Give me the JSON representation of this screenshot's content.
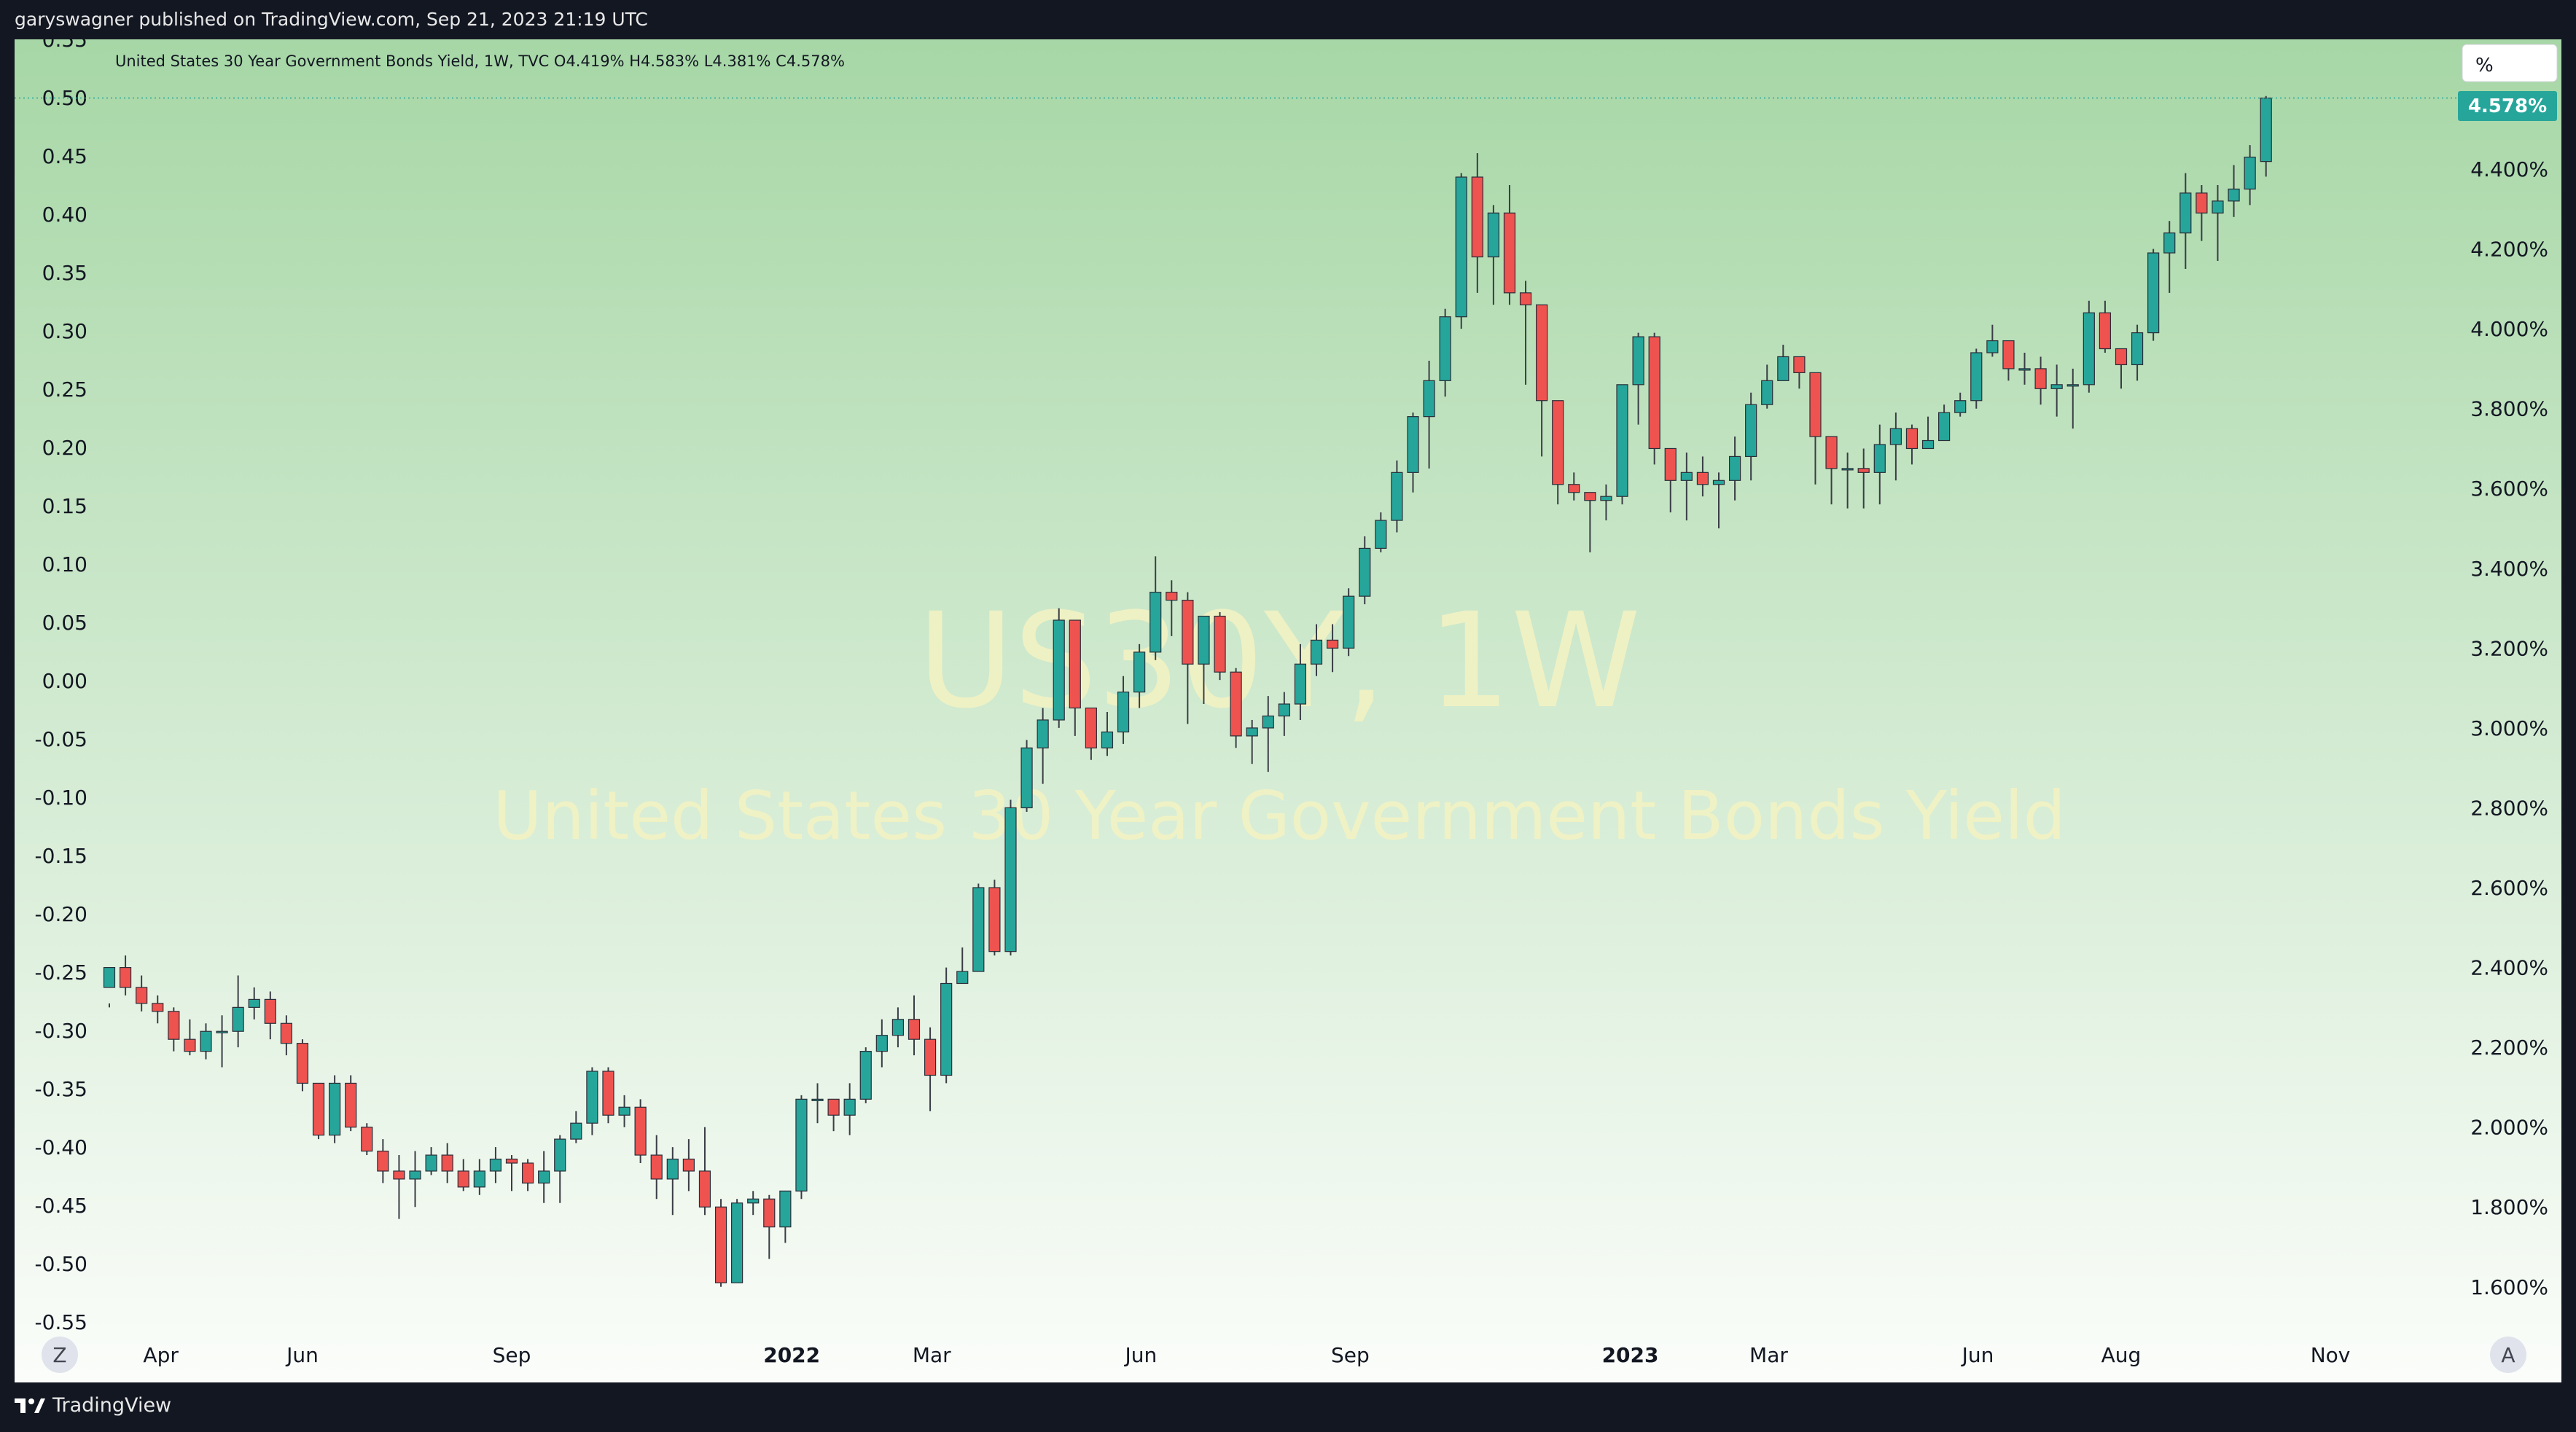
{
  "publisher_line": "garyswagner published on TradingView.com, Sep 21, 2023 21:19 UTC",
  "legend_line": "United States 30 Year Government Bonds Yield, 1W, TVC  O4.419%  H4.583%  L4.381%  C4.578%",
  "watermark": {
    "symbol": "US30Y, 1W",
    "name": "United States 30 Year Government Bonds Yield"
  },
  "scale_button": "%",
  "last_price_label": "4.578%",
  "footer": {
    "brand": "TradingView"
  },
  "buttons": {
    "left": "Z",
    "right": "A"
  },
  "colors": {
    "up": "#26a69a",
    "down": "#ef5350",
    "last_price_bg": "#26a69a"
  },
  "chart_data": {
    "type": "candlestick",
    "title": "United States 30 Year Government Bonds Yield",
    "interval": "1W",
    "grid": false,
    "right_axis": {
      "unit": "%",
      "ylim": [
        1.512,
        4.725
      ],
      "ticks": [
        "4.400%",
        "4.200%",
        "4.000%",
        "3.800%",
        "3.600%",
        "3.400%",
        "3.200%",
        "3.000%",
        "2.800%",
        "2.600%",
        "2.400%",
        "2.200%",
        "2.000%",
        "1.800%",
        "1.600%"
      ]
    },
    "left_axis": {
      "ylim": [
        -0.55,
        0.55
      ],
      "ticks": [
        "0.55",
        "0.50",
        "0.45",
        "0.40",
        "0.35",
        "0.30",
        "0.25",
        "0.20",
        "0.15",
        "0.10",
        "0.05",
        "0.00",
        "-0.05",
        "-0.10",
        "-0.15",
        "-0.20",
        "-0.25",
        "-0.30",
        "-0.35",
        "-0.40",
        "-0.45",
        "-0.50",
        "-0.55"
      ]
    },
    "x_ticks": [
      {
        "label": "Apr",
        "bold": false,
        "week": 3.2
      },
      {
        "label": "Jun",
        "bold": false,
        "week": 12
      },
      {
        "label": "Sep",
        "bold": false,
        "week": 25
      },
      {
        "label": "2022",
        "bold": true,
        "week": 42.4
      },
      {
        "label": "Mar",
        "bold": false,
        "week": 51.1
      },
      {
        "label": "Jun",
        "bold": false,
        "week": 64.1
      },
      {
        "label": "Sep",
        "bold": false,
        "week": 77.1
      },
      {
        "label": "2023",
        "bold": true,
        "week": 94.5
      },
      {
        "label": "Mar",
        "bold": false,
        "week": 103.1
      },
      {
        "label": "Jun",
        "bold": false,
        "week": 116.1
      },
      {
        "label": "Aug",
        "bold": false,
        "week": 125
      },
      {
        "label": "Nov",
        "bold": false,
        "week": 138
      }
    ],
    "candles": [
      [
        2.35,
        2.4,
        2.31,
        2.3
      ],
      [
        2.4,
        2.35,
        2.43,
        2.33
      ],
      [
        2.35,
        2.31,
        2.38,
        2.29
      ],
      [
        2.31,
        2.29,
        2.33,
        2.26
      ],
      [
        2.29,
        2.22,
        2.3,
        2.19
      ],
      [
        2.22,
        2.19,
        2.27,
        2.18
      ],
      [
        2.19,
        2.24,
        2.26,
        2.17
      ],
      [
        2.24,
        2.24,
        2.28,
        2.15
      ],
      [
        2.24,
        2.3,
        2.38,
        2.2
      ],
      [
        2.3,
        2.32,
        2.35,
        2.27
      ],
      [
        2.32,
        2.26,
        2.34,
        2.22
      ],
      [
        2.26,
        2.21,
        2.28,
        2.18
      ],
      [
        2.21,
        2.11,
        2.22,
        2.09
      ],
      [
        2.11,
        1.98,
        2.11,
        1.97
      ],
      [
        1.98,
        2.11,
        2.13,
        1.96
      ],
      [
        2.11,
        2.0,
        2.13,
        1.99
      ],
      [
        2.0,
        1.94,
        2.01,
        1.93
      ],
      [
        1.94,
        1.89,
        1.97,
        1.86
      ],
      [
        1.89,
        1.87,
        1.93,
        1.77
      ],
      [
        1.87,
        1.89,
        1.94,
        1.8
      ],
      [
        1.89,
        1.93,
        1.95,
        1.88
      ],
      [
        1.93,
        1.89,
        1.96,
        1.86
      ],
      [
        1.89,
        1.85,
        1.92,
        1.84
      ],
      [
        1.85,
        1.89,
        1.92,
        1.83
      ],
      [
        1.89,
        1.92,
        1.95,
        1.86
      ],
      [
        1.92,
        1.91,
        1.93,
        1.84
      ],
      [
        1.91,
        1.86,
        1.92,
        1.84
      ],
      [
        1.86,
        1.89,
        1.94,
        1.81
      ],
      [
        1.89,
        1.97,
        1.98,
        1.81
      ],
      [
        1.97,
        2.01,
        2.04,
        1.96
      ],
      [
        2.01,
        2.14,
        2.15,
        1.98
      ],
      [
        2.14,
        2.03,
        2.15,
        2.01
      ],
      [
        2.03,
        2.05,
        2.08,
        2.0
      ],
      [
        2.05,
        1.93,
        2.07,
        1.91
      ],
      [
        1.93,
        1.87,
        1.98,
        1.82
      ],
      [
        1.87,
        1.92,
        1.95,
        1.78
      ],
      [
        1.92,
        1.89,
        1.97,
        1.84
      ],
      [
        1.89,
        1.8,
        2.0,
        1.78
      ],
      [
        1.8,
        1.61,
        1.82,
        1.6
      ],
      [
        1.61,
        1.81,
        1.82,
        1.63
      ],
      [
        1.81,
        1.82,
        1.84,
        1.78
      ],
      [
        1.82,
        1.75,
        1.83,
        1.67
      ],
      [
        1.75,
        1.84,
        1.84,
        1.71
      ],
      [
        1.84,
        2.07,
        2.08,
        1.82
      ],
      [
        2.07,
        2.07,
        2.11,
        2.01
      ],
      [
        2.07,
        2.03,
        2.07,
        1.99
      ],
      [
        2.03,
        2.07,
        2.11,
        1.98
      ],
      [
        2.07,
        2.19,
        2.2,
        2.06
      ],
      [
        2.19,
        2.23,
        2.27,
        2.15
      ],
      [
        2.23,
        2.27,
        2.3,
        2.2
      ],
      [
        2.27,
        2.22,
        2.33,
        2.18
      ],
      [
        2.22,
        2.13,
        2.25,
        2.04
      ],
      [
        2.13,
        2.36,
        2.4,
        2.11
      ],
      [
        2.36,
        2.39,
        2.45,
        2.36
      ],
      [
        2.39,
        2.6,
        2.61,
        2.44
      ],
      [
        2.6,
        2.44,
        2.62,
        2.43
      ],
      [
        2.44,
        2.8,
        2.82,
        2.43
      ],
      [
        2.8,
        2.95,
        2.97,
        2.79
      ],
      [
        2.95,
        3.02,
        3.05,
        2.86
      ],
      [
        3.02,
        3.27,
        3.3,
        3.0
      ],
      [
        3.27,
        3.05,
        3.27,
        2.98
      ],
      [
        3.05,
        2.95,
        3.05,
        2.92
      ],
      [
        2.95,
        2.99,
        3.04,
        2.93
      ],
      [
        2.99,
        3.09,
        3.13,
        2.96
      ],
      [
        3.09,
        3.19,
        3.21,
        3.05
      ],
      [
        3.19,
        3.34,
        3.43,
        3.17
      ],
      [
        3.34,
        3.32,
        3.37,
        3.23
      ],
      [
        3.32,
        3.16,
        3.34,
        3.01
      ],
      [
        3.16,
        3.28,
        3.28,
        3.06
      ],
      [
        3.28,
        3.14,
        3.29,
        3.12
      ],
      [
        3.14,
        2.98,
        3.15,
        2.95
      ],
      [
        2.98,
        3.0,
        3.02,
        2.91
      ],
      [
        3.0,
        3.03,
        3.08,
        2.89
      ],
      [
        3.03,
        3.06,
        3.09,
        2.98
      ],
      [
        3.06,
        3.16,
        3.21,
        3.02
      ],
      [
        3.16,
        3.22,
        3.26,
        3.13
      ],
      [
        3.22,
        3.2,
        3.26,
        3.14
      ],
      [
        3.2,
        3.33,
        3.35,
        3.18
      ],
      [
        3.33,
        3.45,
        3.48,
        3.31
      ],
      [
        3.45,
        3.52,
        3.54,
        3.44
      ],
      [
        3.52,
        3.64,
        3.67,
        3.49
      ],
      [
        3.64,
        3.78,
        3.79,
        3.59
      ],
      [
        3.78,
        3.87,
        3.92,
        3.65
      ],
      [
        3.87,
        4.03,
        4.05,
        3.83
      ],
      [
        4.03,
        4.38,
        4.39,
        4.0
      ],
      [
        4.38,
        4.18,
        4.44,
        4.09
      ],
      [
        4.18,
        4.29,
        4.31,
        4.06
      ],
      [
        4.29,
        4.09,
        4.36,
        4.06
      ],
      [
        4.09,
        4.06,
        4.12,
        3.86
      ],
      [
        4.06,
        3.82,
        3.96,
        3.68
      ],
      [
        3.82,
        3.61,
        3.77,
        3.56
      ],
      [
        3.61,
        3.59,
        3.64,
        3.57
      ],
      [
        3.59,
        3.57,
        3.59,
        3.44
      ],
      [
        3.57,
        3.58,
        3.61,
        3.52
      ],
      [
        3.58,
        3.86,
        3.86,
        3.56
      ],
      [
        3.86,
        3.98,
        3.99,
        3.76
      ],
      [
        3.98,
        3.7,
        3.99,
        3.66
      ],
      [
        3.7,
        3.62,
        3.68,
        3.54
      ],
      [
        3.62,
        3.64,
        3.69,
        3.52
      ],
      [
        3.64,
        3.61,
        3.68,
        3.58
      ],
      [
        3.61,
        3.62,
        3.64,
        3.5
      ],
      [
        3.62,
        3.68,
        3.73,
        3.57
      ],
      [
        3.68,
        3.81,
        3.84,
        3.62
      ],
      [
        3.81,
        3.87,
        3.91,
        3.8
      ],
      [
        3.87,
        3.93,
        3.96,
        3.87
      ],
      [
        3.93,
        3.89,
        3.91,
        3.85
      ],
      [
        3.89,
        3.73,
        3.86,
        3.61
      ],
      [
        3.73,
        3.65,
        3.73,
        3.56
      ],
      [
        3.65,
        3.65,
        3.69,
        3.55
      ],
      [
        3.65,
        3.64,
        3.7,
        3.55
      ],
      [
        3.64,
        3.71,
        3.76,
        3.56
      ],
      [
        3.71,
        3.75,
        3.79,
        3.62
      ],
      [
        3.75,
        3.7,
        3.76,
        3.66
      ],
      [
        3.7,
        3.72,
        3.78,
        3.7
      ],
      [
        3.72,
        3.79,
        3.81,
        3.77
      ],
      [
        3.79,
        3.82,
        3.84,
        3.78
      ],
      [
        3.82,
        3.94,
        3.95,
        3.8
      ],
      [
        3.94,
        3.97,
        4.01,
        3.93
      ],
      [
        3.97,
        3.9,
        3.97,
        3.87
      ],
      [
        3.9,
        3.9,
        3.94,
        3.86
      ],
      [
        3.9,
        3.85,
        3.93,
        3.81
      ],
      [
        3.85,
        3.86,
        3.91,
        3.78
      ],
      [
        3.86,
        3.86,
        3.9,
        3.75
      ],
      [
        3.86,
        4.04,
        4.07,
        3.84
      ],
      [
        4.04,
        3.95,
        4.07,
        3.94
      ],
      [
        3.95,
        3.91,
        3.95,
        3.85
      ],
      [
        3.91,
        3.99,
        4.01,
        3.87
      ],
      [
        3.99,
        4.19,
        4.2,
        3.97
      ],
      [
        4.19,
        4.24,
        4.27,
        4.09
      ],
      [
        4.24,
        4.34,
        4.39,
        4.15
      ],
      [
        4.34,
        4.29,
        4.36,
        4.22
      ],
      [
        4.29,
        4.32,
        4.36,
        4.17
      ],
      [
        4.32,
        4.35,
        4.41,
        4.28
      ],
      [
        4.35,
        4.43,
        4.46,
        4.31
      ],
      [
        4.419,
        4.578,
        4.583,
        4.381
      ]
    ]
  }
}
